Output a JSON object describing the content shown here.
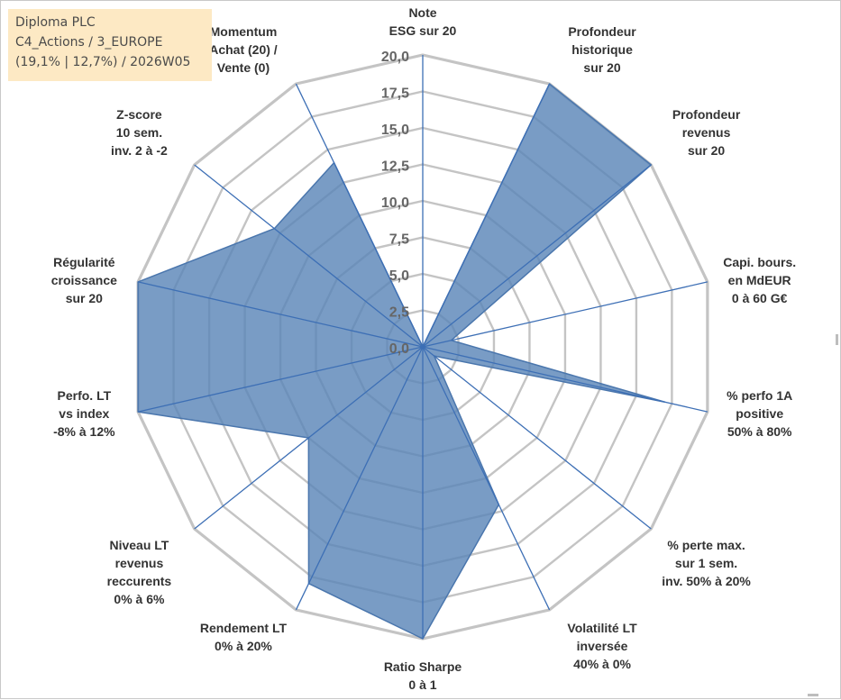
{
  "info_box": {
    "line1": "Diploma PLC",
    "line2": "C4_Actions / 3_EUROPE",
    "line3": "(19,1% | 12,7%) / 2026W05"
  },
  "colors": {
    "fill": "#5b86b8",
    "stroke": "#4a76ad",
    "spoke": "#3d6fb5",
    "grid": "#c4c4c4",
    "info_bg": "#fde9c4"
  },
  "chart_data": {
    "type": "radar",
    "title": "",
    "rlim": [
      0,
      20
    ],
    "ticks": [
      "0,0",
      "2,5",
      "5,0",
      "7,5",
      "10,0",
      "12,5",
      "15,0",
      "17,5",
      "20,0"
    ],
    "grid": true,
    "axes": [
      [
        "Note",
        "ESG sur 20"
      ],
      [
        "Profondeur",
        "historique",
        "sur 20"
      ],
      [
        "Profondeur",
        "revenus",
        "sur 20"
      ],
      [
        "Capi. bours.",
        "en MdEUR",
        "0 à 60 G€"
      ],
      [
        "% perfo 1A",
        "positive",
        "50% à 80%"
      ],
      [
        "% perte max.",
        "sur 1 sem.",
        "inv. 50% à 20%"
      ],
      [
        "Volatilité LT",
        "inversée",
        "40% à 0%"
      ],
      [
        "Ratio Sharpe",
        "0 à 1"
      ],
      [
        "Rendement LT",
        "0% à 20%"
      ],
      [
        "Niveau LT",
        "revenus",
        "reccurents",
        "0% à 6%"
      ],
      [
        "Perfo. LT",
        "vs index",
        "-8% à 12%"
      ],
      [
        "Régularité",
        "croissance",
        "sur 20"
      ],
      [
        "Z-score",
        "10 sem.",
        "inv. 2 à -2"
      ],
      [
        "Momentum",
        "Achat (20) /",
        "Vente (0)"
      ]
    ],
    "series": [
      {
        "values": [
          0,
          20,
          20,
          2,
          17,
          1,
          12,
          20,
          18,
          10,
          20,
          20,
          13,
          14
        ]
      }
    ]
  }
}
